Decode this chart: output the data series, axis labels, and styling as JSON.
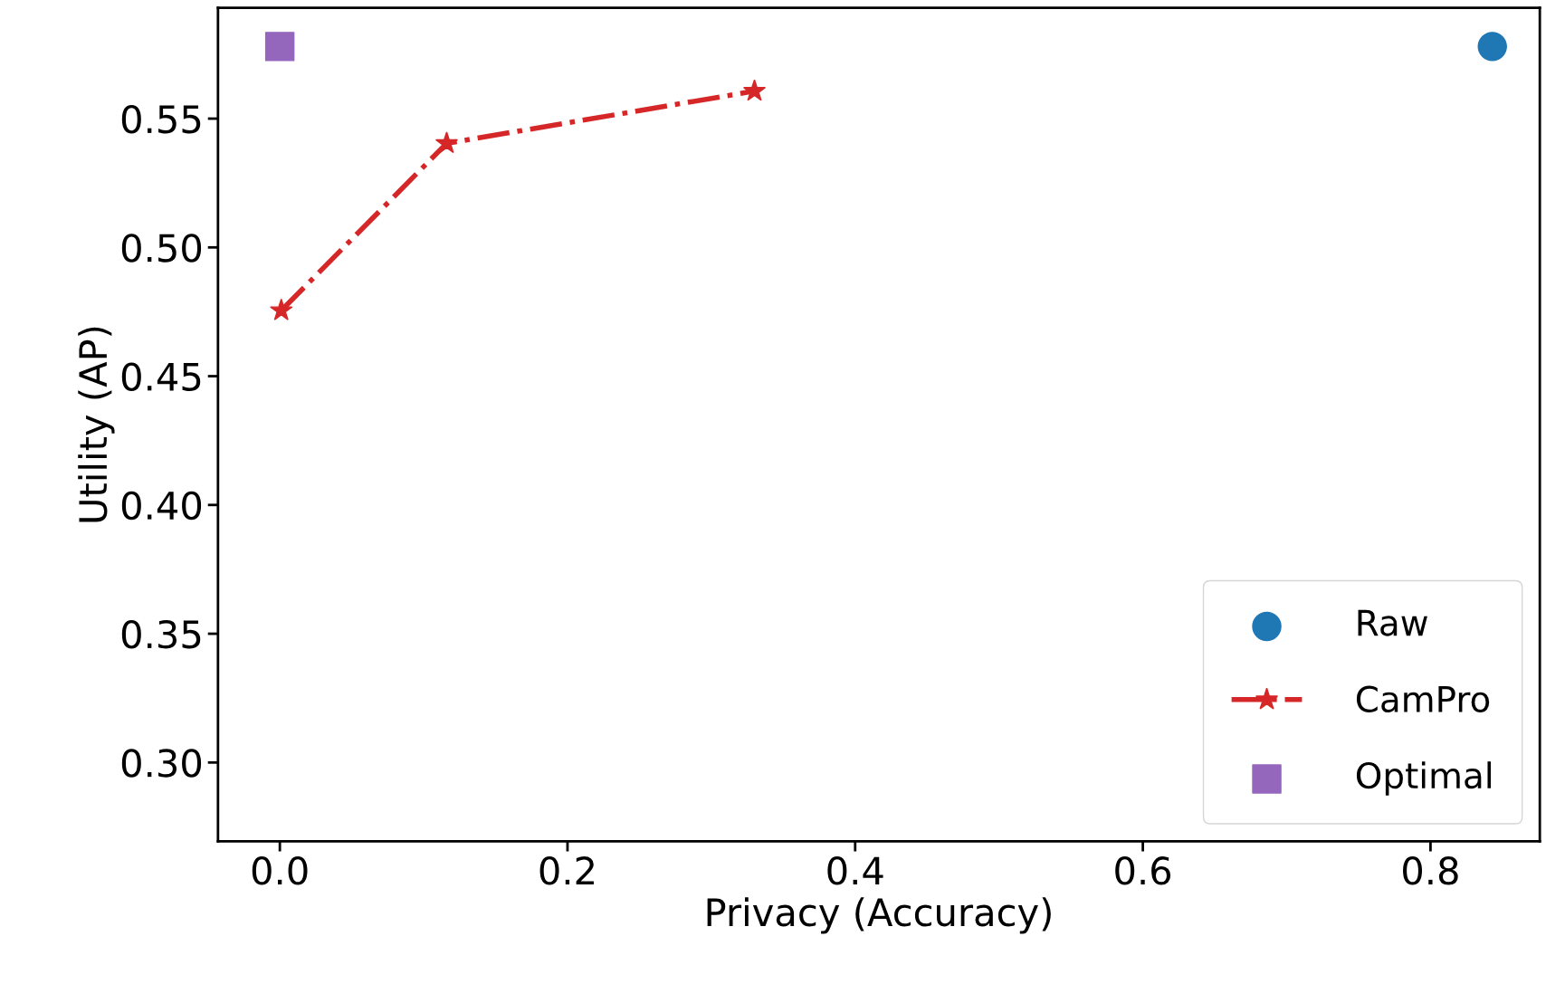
{
  "chart_data": {
    "type": "scatter",
    "xlabel": "Privacy (Accuracy)",
    "ylabel": "Utility (AP)",
    "xlim": [
      -0.043,
      0.876
    ],
    "ylim": [
      0.2694,
      0.593
    ],
    "xticks": [
      {
        "value": 0.0,
        "label": "0.0"
      },
      0.2,
      0.4,
      0.6,
      0.8
    ],
    "yticks": [
      {
        "value": 0.3,
        "label": "0.30"
      },
      0.35,
      {
        "value": 0.4,
        "label": "0.40"
      },
      0.45,
      {
        "value": 0.5,
        "label": "0.50"
      },
      0.55
    ],
    "grid": false,
    "legend": "bottom right",
    "series": [
      {
        "name": "Raw",
        "marker": "circle",
        "color": "#1f77b4",
        "x": [
          0.843
        ],
        "values": [
          0.578
        ]
      },
      {
        "name": "CamPro",
        "type": "line",
        "marker": "star",
        "line_style": "dashdot",
        "color": "#d62728",
        "x": [
          0.001,
          0.116,
          0.33
        ],
        "values": [
          0.4755,
          0.5404,
          0.5607
        ]
      },
      {
        "name": "Optimal",
        "marker": "square",
        "color": "#9467bd",
        "x": [
          0.0
        ],
        "values": [
          0.578
        ]
      }
    ]
  }
}
